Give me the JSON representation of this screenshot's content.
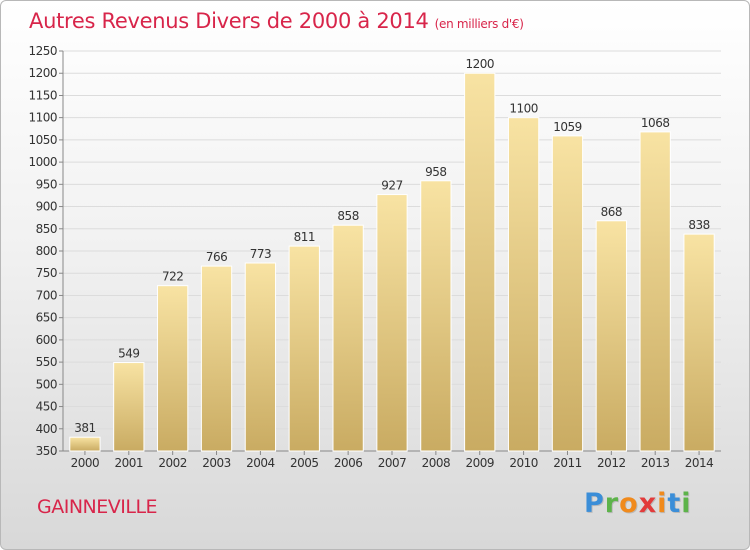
{
  "title": "Autres Revenus Divers de 2000 à 2014",
  "subtitle": "(en milliers d'€)",
  "city": "GAINNEVILLE",
  "logo": {
    "letters": [
      "P",
      "r",
      "o",
      "x",
      "i",
      "t",
      "i"
    ],
    "colors": [
      "#3b8ed8",
      "#5db34a",
      "#f08a1c",
      "#e23b3b",
      "#f08a1c",
      "#3b8ed8",
      "#5db34a"
    ]
  },
  "colors": {
    "title": "#d8254a",
    "bar_light": "#f8e3a3",
    "bar_dark": "#c9ab62"
  },
  "chart_data": {
    "type": "bar",
    "categories": [
      "2000",
      "2001",
      "2002",
      "2003",
      "2004",
      "2005",
      "2006",
      "2007",
      "2008",
      "2009",
      "2010",
      "2011",
      "2012",
      "2013",
      "2014"
    ],
    "values": [
      381,
      549,
      722,
      766,
      773,
      811,
      858,
      927,
      958,
      1200,
      1100,
      1059,
      868,
      1068,
      838
    ],
    "ylim": [
      350,
      1250
    ],
    "yticks": [
      350,
      400,
      450,
      500,
      550,
      600,
      650,
      700,
      750,
      800,
      850,
      900,
      950,
      1000,
      1050,
      1100,
      1150,
      1200,
      1250
    ],
    "grid": true
  }
}
